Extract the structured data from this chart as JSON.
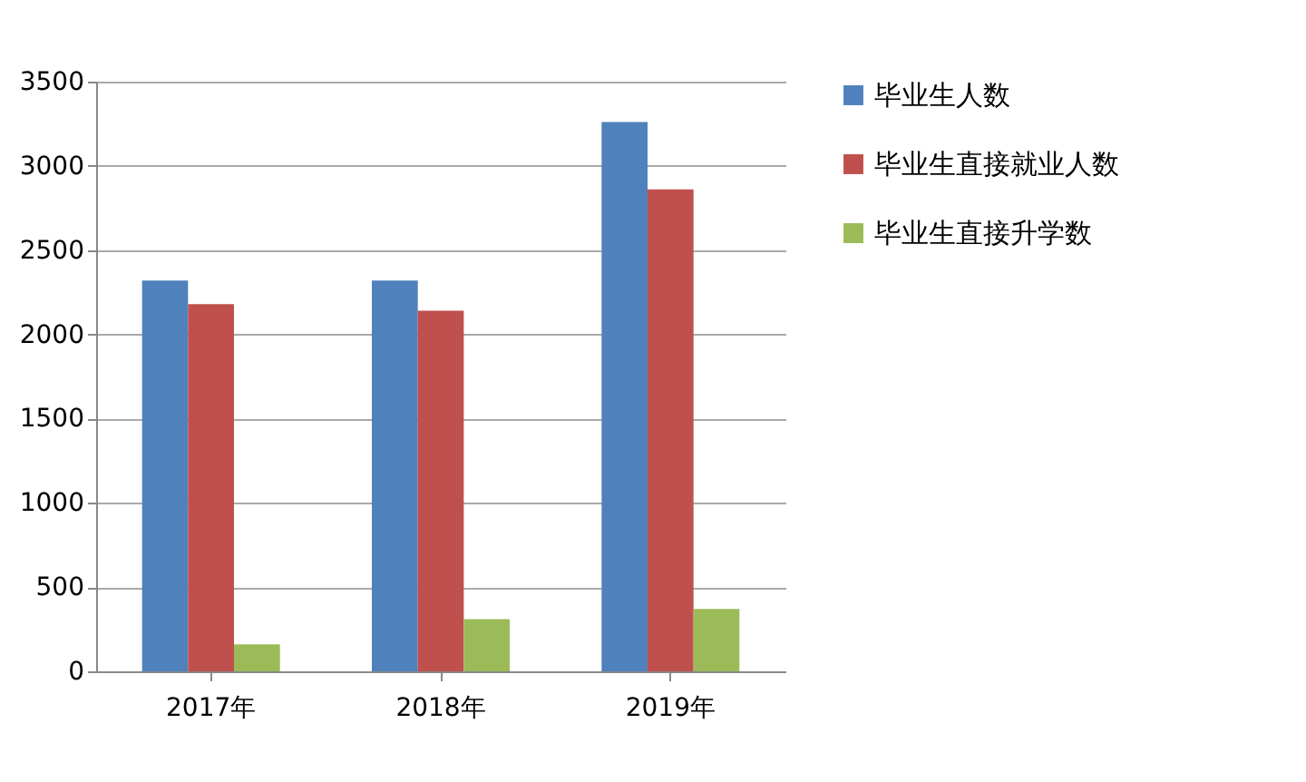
{
  "chart_data": {
    "type": "bar",
    "categories": [
      "2017年",
      "2018年",
      "2019年"
    ],
    "series": [
      {
        "name": "毕业生人数",
        "color": "#4f81bd",
        "values": [
          2320,
          2320,
          3260
        ]
      },
      {
        "name": "毕业生直接就业人数",
        "color": "#c0504d",
        "values": [
          2180,
          2140,
          2860
        ]
      },
      {
        "name": "毕业生直接升学数",
        "color": "#9bbb59",
        "values": [
          160,
          310,
          370
        ]
      }
    ],
    "ylim": [
      0,
      3500
    ],
    "yticks": [
      0,
      500,
      1000,
      1500,
      2000,
      2500,
      3000,
      3500
    ],
    "grid": "y",
    "legend": "right"
  }
}
